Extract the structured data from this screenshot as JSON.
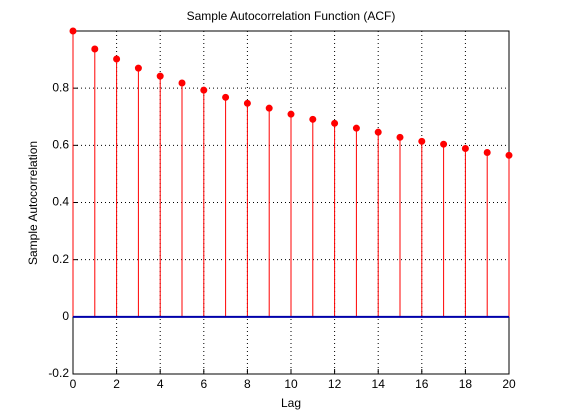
{
  "chart_data": {
    "type": "stem",
    "title": "Sample Autocorrelation Function (ACF)",
    "x_label": "Lag",
    "y_label": "Sample Autocorrelation",
    "x": [
      0,
      1,
      2,
      3,
      4,
      5,
      6,
      7,
      8,
      9,
      10,
      11,
      12,
      13,
      14,
      15,
      16,
      17,
      18,
      19,
      20
    ],
    "series": [
      {
        "color": "#ff0000",
        "values": [
          1,
          0.937,
          0.902,
          0.87,
          0.842,
          0.818,
          0.793,
          0.768,
          0.747,
          0.73,
          0.709,
          0.691,
          0.677,
          0.66,
          0.646,
          0.628,
          0.614,
          0.604,
          0.589,
          0.575,
          0.565
        ]
      }
    ],
    "baseline_color": "#0000aa",
    "xlim": [
      0,
      20
    ],
    "xticks": [
      0,
      2,
      4,
      6,
      8,
      10,
      12,
      14,
      16,
      18,
      20
    ],
    "ylim": [
      -0.2,
      1
    ],
    "yticks": [
      -0.2,
      0,
      0.2,
      0.4,
      0.6,
      0.8
    ],
    "grid": true
  }
}
